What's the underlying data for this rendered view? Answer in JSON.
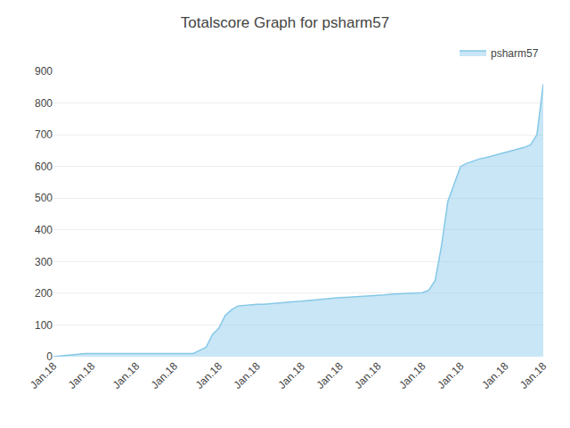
{
  "chart_data": {
    "type": "area",
    "title": "Totalscore Graph for psharm57",
    "categories": [
      "Jan.18",
      null,
      null,
      null,
      null,
      null,
      "Jan.18",
      null,
      null,
      null,
      null,
      null,
      null,
      "Jan.18",
      null,
      null,
      null,
      null,
      null,
      "Jan.18",
      null,
      null,
      null,
      null,
      null,
      null,
      "Jan.18",
      null,
      null,
      null,
      null,
      null,
      "Jan.18",
      null,
      null,
      null,
      null,
      null,
      null,
      "Jan.18",
      null,
      null,
      null,
      null,
      null,
      "Jan.18",
      null,
      null,
      null,
      null,
      null,
      "Jan.18",
      null,
      null,
      null,
      null,
      null,
      null,
      "Jan.18",
      null,
      null,
      null,
      null,
      null,
      "Jan.18",
      null,
      null,
      null,
      null,
      null,
      null,
      "Jan.18",
      null,
      null,
      null,
      null,
      null,
      "Jan.18"
    ],
    "series": [
      {
        "name": "psharm57",
        "color": "#85c8e8",
        "values": [
          0,
          2,
          5,
          8,
          10,
          10,
          10,
          10,
          10,
          10,
          10,
          10,
          10,
          10,
          10,
          10,
          10,
          10,
          10,
          10,
          10,
          10,
          10,
          20,
          30,
          70,
          90,
          130,
          148,
          160,
          162,
          164,
          165,
          165,
          167,
          170,
          170,
          172,
          174,
          175,
          177,
          180,
          182,
          183,
          185,
          186,
          187,
          188,
          190,
          191,
          193,
          194,
          195,
          197,
          198,
          198,
          199,
          200,
          202,
          210,
          240,
          350,
          490,
          545,
          600,
          610,
          618,
          624,
          628,
          633,
          638,
          643,
          648,
          655,
          660,
          668,
          700,
          860
        ]
      }
    ],
    "ylim": [
      0,
      900
    ],
    "yticks": [
      0,
      100,
      200,
      300,
      400,
      500,
      600,
      700,
      800,
      900
    ],
    "grid": true,
    "legend": "upper right"
  }
}
